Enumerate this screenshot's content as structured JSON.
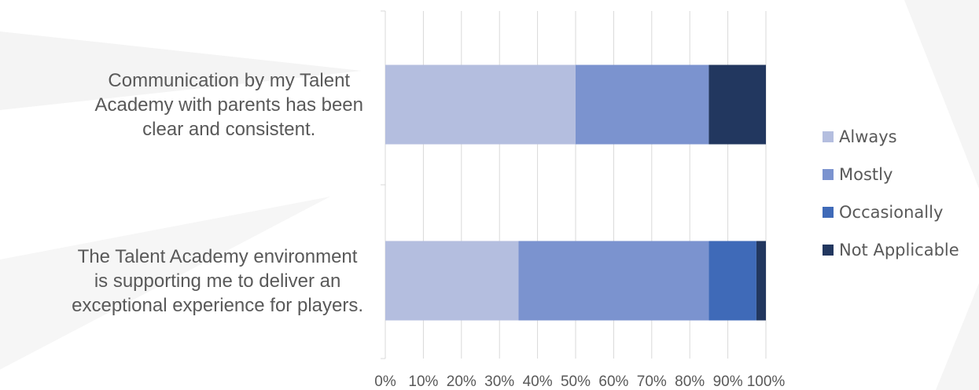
{
  "chart_data": {
    "type": "bar",
    "orientation": "horizontal",
    "stacked": "percent",
    "categories": [
      "Communication by my Talent Academy with parents has been clear and consistent.",
      "The Talent Academy environment is supporting me to deliver an exceptional experience for players."
    ],
    "category_lines": [
      [
        "Communication by my Talent",
        "Academy with parents has been",
        "clear and consistent."
      ],
      [
        "The Talent Academy environment",
        "is supporting me to deliver an",
        "exceptional experience for players."
      ]
    ],
    "series": [
      {
        "name": "Always",
        "values": [
          50,
          35
        ],
        "color": "#b4bedf"
      },
      {
        "name": "Mostly",
        "values": [
          35,
          50
        ],
        "color": "#7b93cf"
      },
      {
        "name": "Occasionally",
        "values": [
          0,
          12.5
        ],
        "color": "#3f6ab8"
      },
      {
        "name": "Not Applicable",
        "values": [
          15,
          2.5
        ],
        "color": "#22375f"
      }
    ],
    "x_ticks": [
      "0%",
      "10%",
      "20%",
      "30%",
      "40%",
      "50%",
      "60%",
      "70%",
      "80%",
      "90%",
      "100%"
    ],
    "xlim": [
      0,
      100
    ],
    "grid": true,
    "legend": "right",
    "title": "",
    "xlabel": "",
    "ylabel": ""
  }
}
